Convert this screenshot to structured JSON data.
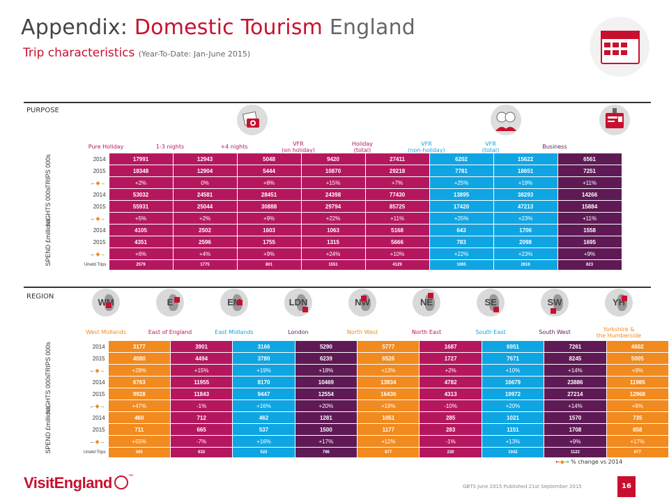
{
  "header": {
    "title_prefix": "Appendix:",
    "title_highlight": "Domestic Tourism",
    "title_suffix": "England",
    "subtitle": "Trip characteristics",
    "subtitle_period": "(Year-To-Date: Jan-June 2015)"
  },
  "icons": {
    "calendar": "calendar-icon",
    "photo": "camera-photo-icon",
    "people": "elderly-couple-icon",
    "business": "id-badge-icon"
  },
  "colors": {
    "magenta": "#b5175f",
    "purple": "#5f1a55",
    "blue": "#0fa5e3",
    "orange": "#f18a1f",
    "brand_red": "#c8102e"
  },
  "purpose": {
    "section_label": "PURPOSE",
    "columns": [
      "Pure Holiday",
      "1-3 nights",
      "+4 nights",
      "VFR\n(on holiday)",
      "Holiday\n(total)",
      "VFR\n(non-holiday)",
      "VFR\n(total)",
      "Business"
    ],
    "groups": {
      "trips": "TRIPS 000s",
      "nights": "NIGHTS 000s",
      "spend": "SPEND £millions"
    },
    "rows": [
      {
        "label": "2014",
        "values": [
          "17991",
          "12943",
          "5048",
          "9420",
          "27411",
          "6202",
          "15622",
          "6561"
        ]
      },
      {
        "label": "2015",
        "values": [
          "18348",
          "12904",
          "5444",
          "10870",
          "29218",
          "7781",
          "18651",
          "7251"
        ]
      },
      {
        "label": "",
        "values": [
          "+2%",
          "0%",
          "+8%",
          "+15%",
          "+7%",
          "+25%",
          "+19%",
          "+11%"
        ]
      },
      {
        "label": "2014",
        "values": [
          "53032",
          "24581",
          "28451",
          "24398",
          "77430",
          "13895",
          "38293",
          "14266"
        ]
      },
      {
        "label": "2015",
        "values": [
          "55931",
          "25044",
          "30888",
          "29794",
          "85725",
          "17420",
          "47213",
          "15884"
        ]
      },
      {
        "label": "",
        "values": [
          "+5%",
          "+2%",
          "+9%",
          "+22%",
          "+11%",
          "+25%",
          "+23%",
          "+11%"
        ]
      },
      {
        "label": "2014",
        "values": [
          "4105",
          "2502",
          "1603",
          "1063",
          "5168",
          "643",
          "1706",
          "1558"
        ]
      },
      {
        "label": "2015",
        "values": [
          "4351",
          "2596",
          "1755",
          "1315",
          "5666",
          "783",
          "2098",
          "1695"
        ]
      },
      {
        "label": "",
        "values": [
          "+6%",
          "+4%",
          "+9%",
          "+24%",
          "+10%",
          "+22%",
          "+23%",
          "+9%"
        ]
      }
    ],
    "unwtd_label": "Unwtd Trips",
    "unwtd": [
      "2579",
      "1775",
      "801",
      "1551",
      "4129",
      "1065",
      "2616",
      "823"
    ]
  },
  "region": {
    "section_label": "REGION",
    "maps": [
      "WM",
      "E",
      "EM",
      "LDN",
      "NW",
      "NE",
      "SE",
      "SW",
      "YH"
    ],
    "columns": [
      "West Midlands",
      "East of England",
      "East Midlands",
      "London",
      "North West",
      "North East",
      "South East",
      "South West",
      "Yorkshire &\nthe Humberside"
    ],
    "groups": {
      "trips": "TRIPS 000s",
      "nights": "NIGHTS 000s",
      "spend": "SPEND £millions"
    },
    "rows": [
      {
        "label": "2014",
        "values": [
          "3177",
          "3901",
          "3166",
          "5290",
          "5777",
          "1687",
          "6951",
          "7261",
          "4602"
        ]
      },
      {
        "label": "2015",
        "values": [
          "4080",
          "4494",
          "3780",
          "6239",
          "6526",
          "1727",
          "7671",
          "8245",
          "5005"
        ]
      },
      {
        "label": "",
        "values": [
          "+28%",
          "+15%",
          "+19%",
          "+18%",
          "+13%",
          "+2%",
          "+10%",
          "+14%",
          "+9%"
        ]
      },
      {
        "label": "2014",
        "values": [
          "6763",
          "11955",
          "8170",
          "10469",
          "13834",
          "4782",
          "16679",
          "23886",
          "11985"
        ]
      },
      {
        "label": "2015",
        "values": [
          "9928",
          "11843",
          "9447",
          "12554",
          "16436",
          "4313",
          "19972",
          "27214",
          "12968"
        ]
      },
      {
        "label": "",
        "values": [
          "+47%",
          "-1%",
          "+16%",
          "+20%",
          "+19%",
          "-10%",
          "+20%",
          "+14%",
          "+8%"
        ]
      },
      {
        "label": "2014",
        "values": [
          "460",
          "712",
          "462",
          "1281",
          "1051",
          "285",
          "1021",
          "1570",
          "735"
        ]
      },
      {
        "label": "2015",
        "values": [
          "711",
          "665",
          "537",
          "1500",
          "1177",
          "283",
          "1151",
          "1708",
          "858"
        ]
      },
      {
        "label": "",
        "values": [
          "+55%",
          "-7%",
          "+16%",
          "+17%",
          "+12%",
          "-1%",
          "+13%",
          "+9%",
          "+17%"
        ]
      }
    ],
    "unwtd_label": "Unwtd Trips",
    "unwtd": [
      "565",
      "633",
      "522",
      "796",
      "877",
      "230",
      "1042",
      "1122",
      "677"
    ]
  },
  "legend_text": "% change vs 2014",
  "footer": {
    "logo": "VisitEngland",
    "logo_tm": "™",
    "source": "GBTS June 2015 Published 21st September 2015",
    "page": "16"
  }
}
